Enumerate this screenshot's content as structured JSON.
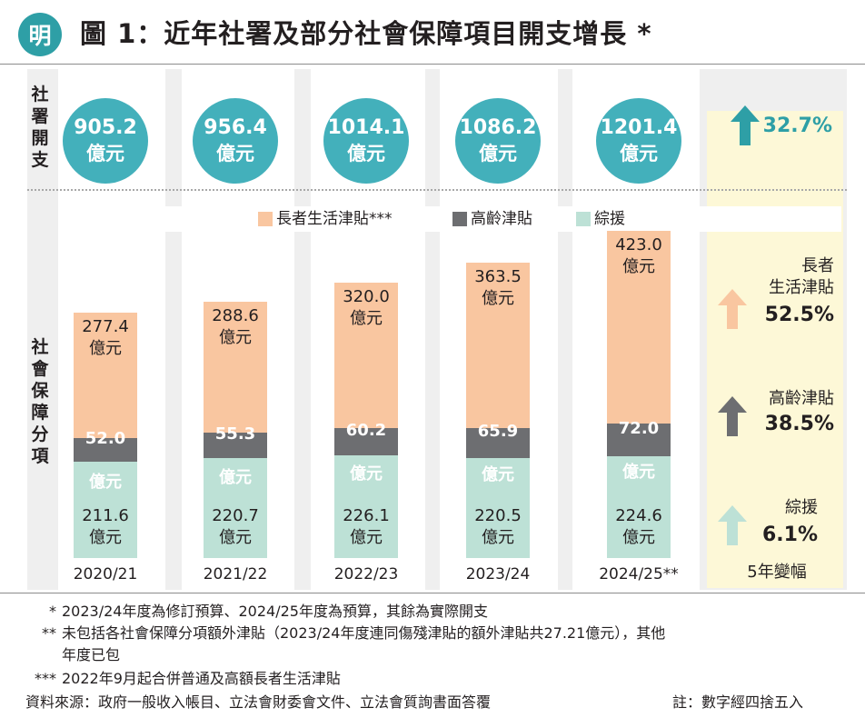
{
  "header": {
    "logo_text": "明",
    "title": "圖 1：近年社署及部分社會保障項目開支增長 *"
  },
  "side_labels": {
    "top": "社署開支",
    "bottom": "社會保障分項"
  },
  "legend": [
    "長者生活津貼***",
    "高齡津貼",
    "綜援"
  ],
  "colors": {
    "elderly_living_allowance": "#f9c6a0",
    "old_age_allowance": "#6d6e71",
    "cssa": "#bde1d6",
    "bubble": "#43b0bb",
    "highlight": "#fdf8d7",
    "arrow_total": "#2e9fa6",
    "arrow_ela": "#f9c6a0",
    "arrow_oaa": "#6d6e71",
    "arrow_cssa": "#bde1d6"
  },
  "unit": "億元",
  "chart_data": {
    "type": "bar",
    "stacked": true,
    "categories": [
      "2020/21",
      "2021/22",
      "2022/23",
      "2023/24",
      "2024/25**"
    ],
    "total_expenditure": {
      "values": [
        905.2,
        956.4,
        1014.1,
        1086.2,
        1201.4
      ],
      "labels": [
        "905.2",
        "956.4",
        "1014.1",
        "1086.2",
        "1201.4"
      ]
    },
    "series": [
      {
        "name": "綜援",
        "values": [
          211.6,
          220.7,
          226.1,
          220.5,
          224.6
        ],
        "labels": [
          "211.6",
          "220.7",
          "226.1",
          "220.5",
          "224.6"
        ]
      },
      {
        "name": "高齡津貼",
        "values": [
          52.0,
          55.3,
          60.2,
          65.9,
          72.0
        ],
        "labels": [
          "52.0",
          "55.3",
          "60.2",
          "65.9",
          "72.0"
        ]
      },
      {
        "name": "長者生活津貼***",
        "values": [
          277.4,
          288.6,
          320.0,
          363.5,
          423.0
        ],
        "labels": [
          "277.4",
          "288.6",
          "320.0",
          "363.5",
          "423.0"
        ]
      }
    ],
    "ylim": [
      0,
      720
    ],
    "change": {
      "label": "5年變幅",
      "total": "32.7%",
      "elderly_living_allowance": {
        "label_line1": "長者",
        "label_line2": "生活津貼",
        "value": "52.5%"
      },
      "old_age_allowance": {
        "label": "高齡津貼",
        "value": "38.5%"
      },
      "cssa": {
        "label": "綜援",
        "value": "6.1%"
      }
    }
  },
  "footnotes": [
    {
      "mark": "*",
      "text": "2023/24年度為修訂預算、2024/25年度為預算，其餘為實際開支"
    },
    {
      "mark": "**",
      "text": "未包括各社會保障分項額外津貼（2023/24年度連同傷殘津貼的額外津貼共27.21億元），其他"
    },
    {
      "mark": "",
      "text": "年度已包"
    },
    {
      "mark": "***",
      "text": "2022年9月起合併普通及高額長者生活津貼"
    }
  ],
  "source": "資料來源：政府一般收入帳目、立法會財委會文件、立法會質詢書面答覆",
  "note": "註：數字經四捨五入"
}
